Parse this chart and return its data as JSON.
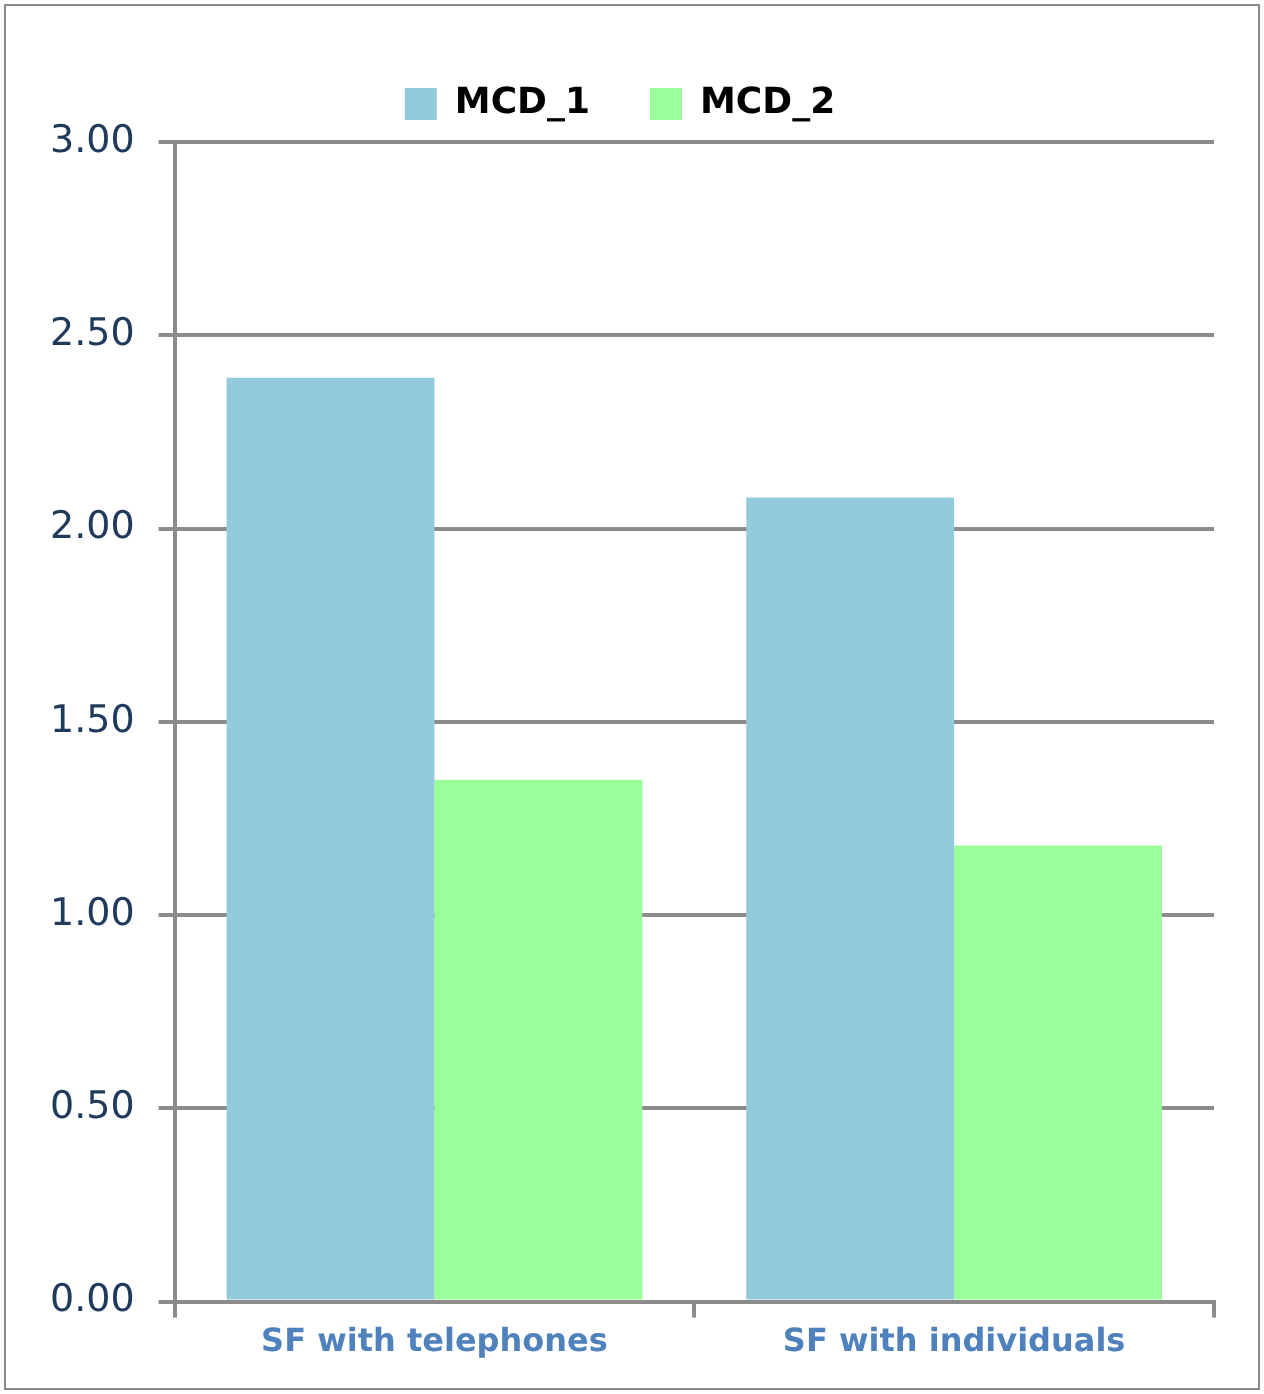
{
  "chart_data": {
    "type": "bar",
    "categories": [
      "SF with telephones",
      "SF with individuals"
    ],
    "series": [
      {
        "name": "MCD_1",
        "color": "#94cbdc",
        "values": [
          2.39,
          2.08
        ]
      },
      {
        "name": "MCD_2",
        "color": "#9aff9a",
        "values": [
          1.35,
          1.18
        ]
      }
    ],
    "ylim": [
      0,
      3
    ],
    "yticks": [
      {
        "value": 0,
        "label": "0.00"
      },
      {
        "value": 0.5,
        "label": "0.50"
      },
      {
        "value": 1,
        "label": "1.00"
      },
      {
        "value": 1.5,
        "label": "1.50"
      },
      {
        "value": 2,
        "label": "2.00"
      },
      {
        "value": 2.5,
        "label": "2.50"
      },
      {
        "value": 3,
        "label": "3.00"
      }
    ],
    "grid": "y",
    "legend": "top"
  }
}
